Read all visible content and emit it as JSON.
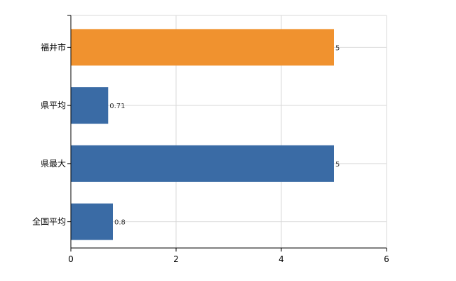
{
  "chart_data": {
    "type": "bar",
    "orientation": "horizontal",
    "categories": [
      "福井市",
      "県平均",
      "県最大",
      "全国平均"
    ],
    "values": [
      5,
      0.71,
      5,
      0.8
    ],
    "value_labels": [
      "5",
      "0.71",
      "5",
      "0.8"
    ],
    "bar_colors": [
      "#f0922f",
      "#3a6ba5",
      "#3a6ba5",
      "#3a6ba5"
    ],
    "xlim": [
      0,
      6
    ],
    "x_ticks": [
      0,
      2,
      4,
      6
    ],
    "x_tick_labels": [
      "0",
      "2",
      "4",
      "6"
    ],
    "grid": true,
    "legend": "none"
  }
}
